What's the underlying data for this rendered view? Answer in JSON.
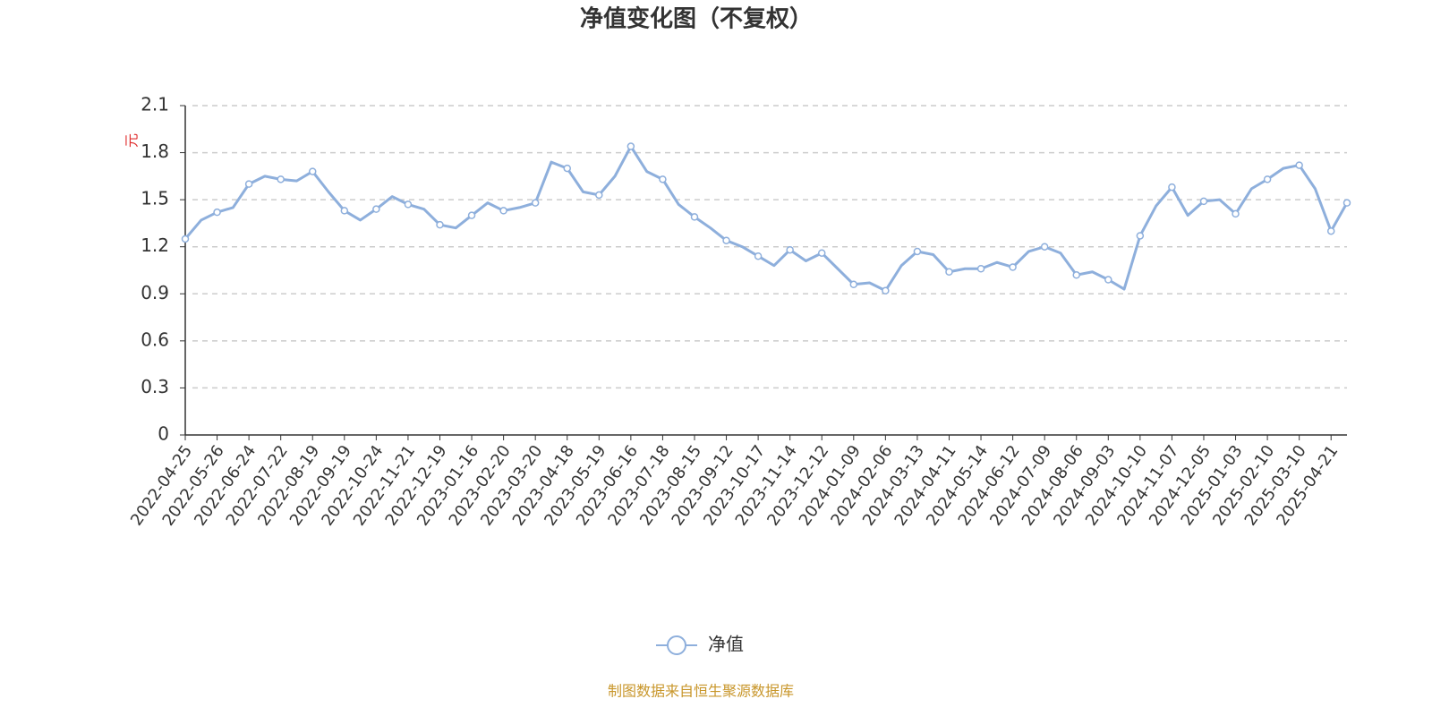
{
  "chart_data": {
    "type": "line",
    "title": "净值变化图（不复权）",
    "y_label": "元",
    "source": "制图数据来自恒生聚源数据库",
    "categories": [
      "2022-04-25",
      null,
      "2022-05-26",
      null,
      "2022-06-24",
      null,
      "2022-07-22",
      null,
      "2022-08-19",
      null,
      "2022-09-19",
      null,
      "2022-10-24",
      null,
      "2022-11-21",
      null,
      "2022-12-19",
      null,
      "2023-01-16",
      null,
      "2023-02-20",
      null,
      "2023-03-20",
      null,
      "2023-04-18",
      null,
      "2023-05-19",
      null,
      "2023-06-16",
      null,
      "2023-07-18",
      null,
      "2023-08-15",
      null,
      "2023-09-12",
      null,
      "2023-10-17",
      null,
      "2023-11-14",
      null,
      "2023-12-12",
      null,
      "2024-01-09",
      null,
      "2024-02-06",
      null,
      "2024-03-13",
      null,
      "2024-04-11",
      null,
      "2024-05-14",
      null,
      "2024-06-12",
      null,
      "2024-07-09",
      null,
      "2024-08-06",
      null,
      "2024-09-03",
      null,
      "2024-10-10",
      null,
      "2024-11-07",
      null,
      "2024-12-05",
      null,
      "2025-01-03",
      null,
      "2025-02-10",
      null,
      "2025-03-10",
      null,
      "2025-04-21",
      null
    ],
    "series": [
      {
        "name": "净值",
        "color": "#8eafdc",
        "values": [
          1.25,
          1.37,
          1.42,
          1.45,
          1.6,
          1.65,
          1.63,
          1.62,
          1.68,
          1.55,
          1.43,
          1.37,
          1.44,
          1.52,
          1.47,
          1.44,
          1.34,
          1.32,
          1.4,
          1.48,
          1.43,
          1.45,
          1.48,
          1.74,
          1.7,
          1.55,
          1.53,
          1.65,
          1.84,
          1.68,
          1.63,
          1.47,
          1.39,
          1.32,
          1.24,
          1.2,
          1.14,
          1.08,
          1.18,
          1.11,
          1.16,
          1.06,
          0.96,
          0.97,
          0.92,
          1.08,
          1.17,
          1.15,
          1.04,
          1.06,
          1.06,
          1.1,
          1.07,
          1.17,
          1.2,
          1.16,
          1.02,
          1.04,
          0.99,
          0.93,
          1.27,
          1.46,
          1.58,
          1.4,
          1.49,
          1.5,
          1.41,
          1.57,
          1.63,
          1.7,
          1.72,
          1.57,
          1.3,
          1.48
        ]
      }
    ],
    "ylim": [
      0,
      2.1
    ],
    "yticks": [
      0,
      0.3,
      0.6,
      0.9,
      1.2,
      1.5,
      1.8,
      2.1
    ],
    "grid": true,
    "legend": "bottom"
  }
}
